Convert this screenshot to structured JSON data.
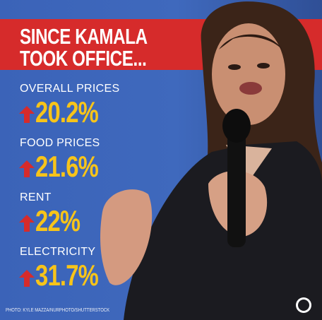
{
  "header": {
    "lines": [
      "SINCE KAMALA",
      "TOOK OFFICE..."
    ]
  },
  "stats": [
    {
      "label": "OVERALL PRICES",
      "value": "20.2%"
    },
    {
      "label": "FOOD PRICES",
      "value": "21.6%"
    },
    {
      "label": "RENT",
      "value": "22%"
    },
    {
      "label": "ELECTRICITY",
      "value": "31.7%"
    }
  ],
  "credit": "PHOTO: KYLE MAZZA/NURPHOTO/SHUTTERSTOCK"
}
